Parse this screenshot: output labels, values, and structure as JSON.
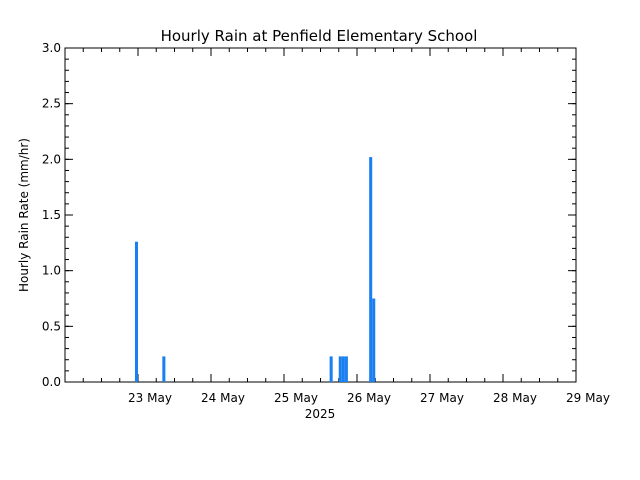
{
  "chart_data": {
    "type": "bar",
    "title": "Hourly Rain at Penfield Elementary School",
    "xlabel": "2025",
    "ylabel": "Hourly Rain Rate (mm/hr)",
    "x_axis": {
      "type": "date",
      "start": "2025-05-22T00:00",
      "end": "2025-05-29T00:00",
      "tick_labels": [
        "23 May",
        "24 May",
        "25 May",
        "26 May",
        "27 May",
        "28 May",
        "29 May"
      ]
    },
    "y_axis": {
      "ylim": [
        0,
        3.0
      ],
      "tick_labels": [
        "0.0",
        "0.5",
        "1.0",
        "1.5",
        "2.0",
        "2.5",
        "3.0"
      ]
    },
    "grid": false,
    "series": [
      {
        "color": "#1a7ff0",
        "points": [
          {
            "x": "2025-05-22T23:00",
            "y": 1.26
          },
          {
            "x": "2025-05-23T08:00",
            "y": 0.23
          },
          {
            "x": "2025-05-25T15:00",
            "y": 0.23
          },
          {
            "x": "2025-05-25T18:00",
            "y": 0.23
          },
          {
            "x": "2025-05-25T19:00",
            "y": 0.23
          },
          {
            "x": "2025-05-25T20:00",
            "y": 0.23
          },
          {
            "x": "2025-05-26T04:00",
            "y": 2.02
          },
          {
            "x": "2025-05-26T05:00",
            "y": 0.75
          }
        ]
      }
    ]
  }
}
